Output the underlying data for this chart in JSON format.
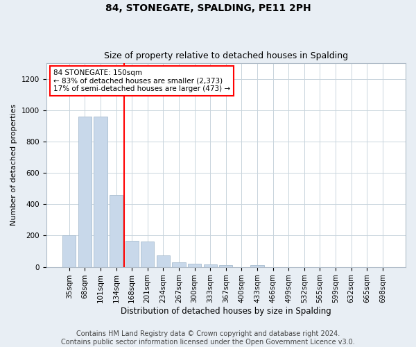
{
  "title": "84, STONEGATE, SPALDING, PE11 2PH",
  "subtitle": "Size of property relative to detached houses in Spalding",
  "xlabel": "Distribution of detached houses by size in Spalding",
  "ylabel": "Number of detached properties",
  "categories": [
    "35sqm",
    "68sqm",
    "101sqm",
    "134sqm",
    "168sqm",
    "201sqm",
    "234sqm",
    "267sqm",
    "300sqm",
    "333sqm",
    "367sqm",
    "400sqm",
    "433sqm",
    "466sqm",
    "499sqm",
    "532sqm",
    "565sqm",
    "599sqm",
    "632sqm",
    "665sqm",
    "698sqm"
  ],
  "values": [
    200,
    960,
    960,
    460,
    165,
    160,
    75,
    28,
    22,
    17,
    12,
    0,
    12,
    0,
    0,
    0,
    0,
    0,
    0,
    0,
    0
  ],
  "bar_color": "#c8d8ea",
  "bar_edge_color": "#a8bdd0",
  "vline_color": "red",
  "annotation_text": "84 STONEGATE: 150sqm\n← 83% of detached houses are smaller (2,373)\n17% of semi-detached houses are larger (473) →",
  "annotation_box_color": "white",
  "annotation_box_edge": "red",
  "ylim": [
    0,
    1300
  ],
  "yticks": [
    0,
    200,
    400,
    600,
    800,
    1000,
    1200
  ],
  "footer": "Contains HM Land Registry data © Crown copyright and database right 2024.\nContains public sector information licensed under the Open Government Licence v3.0.",
  "title_fontsize": 10,
  "subtitle_fontsize": 9,
  "xlabel_fontsize": 8.5,
  "ylabel_fontsize": 8,
  "tick_fontsize": 7.5,
  "footer_fontsize": 7,
  "background_color": "#e8eef4",
  "plot_bg_color": "white",
  "grid_color": "#c8d4dc"
}
